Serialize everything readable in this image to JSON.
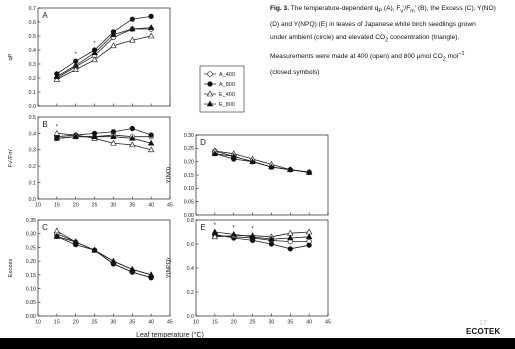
{
  "caption": {
    "label": "Fig. 3.",
    "lines": [
      "The temperature-dependent q",
      "(D) and Y(NPQ) (E) in leaves of Japanese white birch seedlings grown",
      "under ambient (circle) and elevated CO",
      "Measurements were made at 400 (open) and 800 µmol CO",
      "(closed symbols)"
    ],
    "line1_parts": [
      "The temperature-dependent q",
      "P",
      " (A), F",
      "v",
      "'/F",
      "m",
      "' (B), the Excess (C), Y(NO)"
    ],
    "line3_parts": [
      "under ambient (circle) and elevated CO",
      "2",
      " concentration (triangle)."
    ],
    "line4_parts": [
      "Measurements were made at 400 (open) and 800 µmol CO",
      "2",
      " mol",
      "−1"
    ]
  },
  "footer": {
    "brand": "ECOTEK",
    "page_number": "17"
  },
  "x_axis_label": "Leaf temperature (°C)",
  "legend": {
    "entries": [
      {
        "label": "A_400",
        "marker": "circle-open"
      },
      {
        "label": "A_800",
        "marker": "circle-filled"
      },
      {
        "label": "E_400",
        "marker": "triangle-open"
      },
      {
        "label": "E_800",
        "marker": "triangle-filled"
      }
    ]
  },
  "chart_data": [
    {
      "type": "line",
      "panel_letter": "A",
      "ylabel": "qP",
      "x": [
        15,
        20,
        25,
        30,
        35,
        40
      ],
      "xlim": [
        10,
        45
      ],
      "xticks": [
        "10",
        "15",
        "20",
        "25",
        "30",
        "35",
        "40",
        "45"
      ],
      "ylim": [
        0,
        0.7
      ],
      "yticks": [
        "0.0",
        "0.1",
        "0.2",
        "0.3",
        "0.4",
        "0.5",
        "0.6",
        "0.7"
      ],
      "annotations": [
        {
          "text": "*",
          "x": 20
        },
        {
          "text": "*",
          "x": 25
        }
      ],
      "series": [
        {
          "name": "A_400",
          "marker": "circle-open",
          "values": [
            0.2,
            0.28,
            0.36,
            0.49,
            0.55,
            0.55
          ]
        },
        {
          "name": "A_800",
          "marker": "circle-filled",
          "values": [
            0.23,
            0.32,
            0.4,
            0.53,
            0.62,
            0.64
          ]
        },
        {
          "name": "E_400",
          "marker": "triangle-open",
          "values": [
            0.19,
            0.26,
            0.33,
            0.43,
            0.47,
            0.5
          ]
        },
        {
          "name": "E_800",
          "marker": "triangle-filled",
          "values": [
            0.21,
            0.29,
            0.38,
            0.51,
            0.55,
            0.56
          ]
        }
      ]
    },
    {
      "type": "line",
      "panel_letter": "B",
      "ylabel": "Fv'/Fm'",
      "x": [
        15,
        20,
        25,
        30,
        35,
        40
      ],
      "xlim": [
        10,
        45
      ],
      "xticks": [
        "10",
        "15",
        "20",
        "25",
        "30",
        "35",
        "40",
        "45"
      ],
      "ylim": [
        0,
        0.5
      ],
      "yticks": [
        "0.0",
        "0.1",
        "0.2",
        "0.3",
        "0.4",
        "0.5"
      ],
      "annotations": [
        {
          "text": "*",
          "x": 15
        }
      ],
      "series": [
        {
          "name": "A_400",
          "marker": "circle-open",
          "values": [
            0.37,
            0.38,
            0.38,
            0.39,
            0.38,
            0.38
          ]
        },
        {
          "name": "A_800",
          "marker": "circle-filled",
          "values": [
            0.38,
            0.39,
            0.4,
            0.41,
            0.43,
            0.39
          ]
        },
        {
          "name": "E_400",
          "marker": "triangle-open",
          "values": [
            0.4,
            0.39,
            0.37,
            0.34,
            0.33,
            0.3
          ]
        },
        {
          "name": "E_800",
          "marker": "triangle-filled",
          "values": [
            0.37,
            0.38,
            0.38,
            0.38,
            0.37,
            0.34
          ]
        }
      ]
    },
    {
      "type": "line",
      "panel_letter": "C",
      "ylabel": "Excess",
      "x": [
        15,
        20,
        25,
        30,
        35,
        40
      ],
      "xlim": [
        10,
        45
      ],
      "xticks": [
        "10",
        "15",
        "20",
        "25",
        "30",
        "35",
        "40",
        "45"
      ],
      "ylim": [
        0,
        0.35
      ],
      "yticks": [
        "0.00",
        "0.05",
        "0.10",
        "0.15",
        "0.20",
        "0.25",
        "0.30",
        "0.35"
      ],
      "annotations": [],
      "series": [
        {
          "name": "A_400",
          "marker": "circle-open",
          "values": [
            0.3,
            0.27,
            0.24,
            0.19,
            0.16,
            0.14
          ]
        },
        {
          "name": "A_800",
          "marker": "circle-filled",
          "values": [
            0.29,
            0.26,
            0.24,
            0.19,
            0.16,
            0.14
          ]
        },
        {
          "name": "E_400",
          "marker": "triangle-open",
          "values": [
            0.31,
            0.27,
            0.24,
            0.2,
            0.17,
            0.15
          ]
        },
        {
          "name": "E_800",
          "marker": "triangle-filled",
          "values": [
            0.29,
            0.27,
            0.24,
            0.2,
            0.17,
            0.15
          ]
        }
      ]
    },
    {
      "type": "line",
      "panel_letter": "D",
      "ylabel": "Y(NO)",
      "x": [
        15,
        20,
        25,
        30,
        35,
        40
      ],
      "xlim": [
        10,
        45
      ],
      "xticks": [
        "10",
        "15",
        "20",
        "25",
        "30",
        "35",
        "40",
        "45"
      ],
      "ylim": [
        0,
        0.3
      ],
      "yticks": [
        "0.00",
        "0.05",
        "0.10",
        "0.15",
        "0.20",
        "0.25",
        "0.30"
      ],
      "annotations": [],
      "series": [
        {
          "name": "A_400",
          "marker": "circle-open",
          "values": [
            0.24,
            0.22,
            0.2,
            0.18,
            0.17,
            0.16
          ]
        },
        {
          "name": "A_800",
          "marker": "circle-filled",
          "values": [
            0.23,
            0.21,
            0.2,
            0.18,
            0.17,
            0.16
          ]
        },
        {
          "name": "E_400",
          "marker": "triangle-open",
          "values": [
            0.24,
            0.23,
            0.21,
            0.19,
            0.17,
            0.16
          ]
        },
        {
          "name": "E_800",
          "marker": "triangle-filled",
          "values": [
            0.23,
            0.22,
            0.2,
            0.18,
            0.17,
            0.16
          ]
        }
      ]
    },
    {
      "type": "line",
      "panel_letter": "E",
      "ylabel": "Y(NPQ)",
      "x": [
        15,
        20,
        25,
        30,
        35,
        40
      ],
      "xlim": [
        10,
        45
      ],
      "xticks": [
        "10",
        "15",
        "20",
        "25",
        "30",
        "35",
        "40",
        "45"
      ],
      "ylim": [
        0,
        0.8
      ],
      "yticks": [
        "0.0",
        "0.2",
        "0.4",
        "0.6",
        "0.8"
      ],
      "annotations": [
        {
          "text": "*",
          "x": 15
        },
        {
          "text": "*",
          "x": 20
        },
        {
          "text": "*",
          "x": 25
        }
      ],
      "series": [
        {
          "name": "A_400",
          "marker": "circle-open",
          "values": [
            0.67,
            0.66,
            0.65,
            0.63,
            0.62,
            0.62
          ]
        },
        {
          "name": "A_800",
          "marker": "circle-filled",
          "values": [
            0.68,
            0.65,
            0.63,
            0.6,
            0.56,
            0.59
          ]
        },
        {
          "name": "E_400",
          "marker": "triangle-open",
          "values": [
            0.66,
            0.67,
            0.67,
            0.66,
            0.69,
            0.7
          ]
        },
        {
          "name": "E_800",
          "marker": "triangle-filled",
          "values": [
            0.7,
            0.68,
            0.66,
            0.64,
            0.65,
            0.66
          ]
        }
      ]
    }
  ]
}
